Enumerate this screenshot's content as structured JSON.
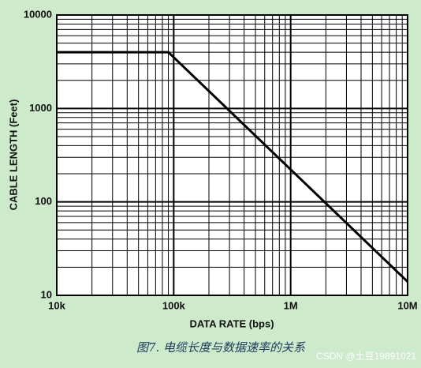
{
  "chart_data": {
    "type": "line",
    "x_label": "DATA RATE (bps)",
    "y_label": "CABLE LENGTH (Feet)",
    "x": [
      10000,
      90000,
      10000000
    ],
    "series": [
      {
        "name": "Cable length",
        "color": "#000000",
        "values": [
          4000,
          4000,
          14
        ]
      }
    ],
    "xlim": [
      10000,
      10000000
    ],
    "ylim": [
      10,
      10000
    ],
    "xticks": [
      {
        "value": 10000,
        "label": "10k"
      },
      {
        "value": 100000,
        "label": "100k"
      },
      {
        "value": 1000000,
        "label": "1M"
      },
      {
        "value": 10000000,
        "label": "10M"
      }
    ],
    "yticks": [
      10,
      100,
      1000,
      10000
    ],
    "xscale": "log",
    "yscale": "log",
    "grid": true,
    "caption": "图7. 电缆长度与数据速率的关系",
    "watermark": "CSDN @土豆19891021"
  }
}
